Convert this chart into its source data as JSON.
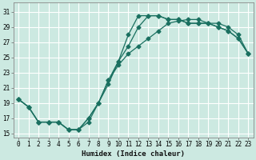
{
  "xlabel": "Humidex (Indice chaleur)",
  "xlim": [
    -0.5,
    23.5
  ],
  "ylim": [
    14.5,
    32.2
  ],
  "yticks": [
    15,
    17,
    19,
    21,
    23,
    25,
    27,
    29,
    31
  ],
  "xticks": [
    0,
    1,
    2,
    3,
    4,
    5,
    6,
    7,
    8,
    9,
    10,
    11,
    12,
    13,
    14,
    15,
    16,
    17,
    18,
    19,
    20,
    21,
    22,
    23
  ],
  "background_color": "#cce9e1",
  "grid_color": "#ffffff",
  "line_color": "#1a7060",
  "line1_x": [
    0,
    1,
    2,
    3,
    4,
    5,
    6,
    7,
    8,
    9,
    10,
    11,
    12,
    13,
    14,
    15,
    16,
    17,
    18,
    19,
    20,
    21,
    22,
    23
  ],
  "line1_y": [
    19.5,
    18.5,
    16.5,
    16.5,
    16.5,
    15.5,
    15.5,
    16.5,
    19.0,
    21.5,
    24.5,
    28.0,
    30.5,
    30.5,
    30.5,
    30.0,
    30.0,
    29.5,
    29.5,
    29.5,
    29.0,
    28.5,
    27.5,
    25.5
  ],
  "line2_x": [
    0,
    1,
    2,
    3,
    4,
    5,
    6,
    7,
    8,
    9,
    10,
    11,
    12,
    13,
    14,
    15,
    16,
    17,
    18,
    19,
    20,
    21,
    22,
    23
  ],
  "line2_y": [
    19.5,
    18.5,
    16.5,
    16.5,
    16.5,
    15.5,
    15.5,
    17.0,
    19.0,
    22.0,
    24.5,
    26.5,
    29.0,
    30.5,
    30.5,
    30.0,
    30.0,
    29.5,
    29.5,
    29.5,
    29.0,
    28.5,
    27.5,
    25.5
  ],
  "line3_x": [
    0,
    1,
    2,
    3,
    4,
    5,
    6,
    7,
    8,
    9,
    10,
    11,
    12,
    13,
    14,
    15,
    16,
    17,
    18,
    19,
    20,
    21,
    22,
    23
  ],
  "line3_y": [
    19.5,
    18.5,
    16.5,
    16.5,
    16.5,
    15.5,
    15.5,
    17.0,
    19.0,
    22.0,
    24.0,
    25.5,
    26.5,
    27.5,
    28.5,
    29.5,
    29.8,
    30.0,
    30.0,
    29.5,
    29.5,
    29.0,
    28.0,
    25.5
  ],
  "marker_style": "D",
  "marker_size": 2.5,
  "line_width": 0.9
}
